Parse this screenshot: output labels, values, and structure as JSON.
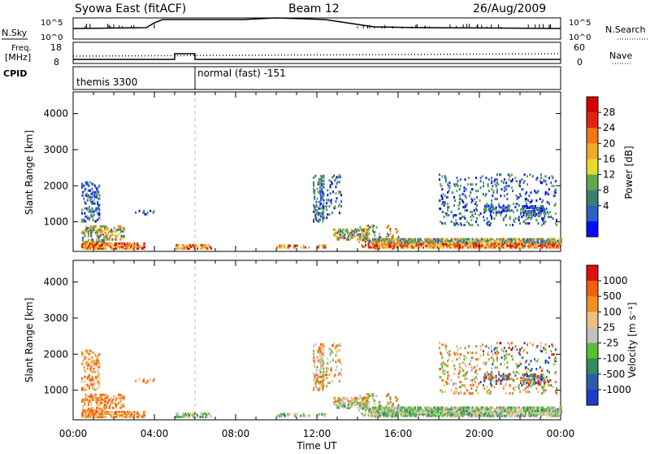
{
  "header": {
    "title": "Syowa East (fitACF)",
    "beam": "Beam 12",
    "date": "26/Aug/2009"
  },
  "strips": {
    "nsky": {
      "label": "N.Sky",
      "tick_top": "10^5",
      "tick_bottom": "10^0"
    },
    "nsearch": {
      "label": "N.Search",
      "tick_top": "10^5",
      "tick_bottom": "10^0"
    },
    "freq": {
      "label_line1": "Freq.",
      "label_line2": "[MHz]",
      "tick_top": "18",
      "tick_bottom": "8"
    },
    "nave": {
      "label": "Nave",
      "tick_top": "60",
      "tick_bottom": "0"
    },
    "cpid": {
      "label": "CPID",
      "modes": [
        "themis 3300",
        "normal (fast) -151"
      ]
    }
  },
  "chart_data": [
    {
      "type": "heatmap",
      "title": "",
      "xlabel": "Time UT",
      "ylabel": "Slant Range [km]",
      "xlim_hours": [
        0,
        24
      ],
      "ylim_km": [
        180,
        4600
      ],
      "x_ticks": [
        "00:00",
        "04:00",
        "08:00",
        "12:00",
        "16:00",
        "20:00",
        "00:00"
      ],
      "y_ticks": [
        1000,
        2000,
        3000,
        4000
      ],
      "colorbar": {
        "label": "Power [dB]",
        "ticks": [
          4,
          8,
          12,
          16,
          20,
          24,
          28
        ],
        "colors": [
          "#0a0aff",
          "#2a5ec8",
          "#3c7f6e",
          "#5fa84a",
          "#e6dc2a",
          "#f0a82a",
          "#f07818",
          "#e02414",
          "#d80000"
        ]
      },
      "grid": false
    },
    {
      "type": "heatmap",
      "title": "",
      "xlabel": "Time UT",
      "ylabel": "Slant Range [km]",
      "xlim_hours": [
        0,
        24
      ],
      "ylim_km": [
        180,
        4600
      ],
      "x_ticks": [
        "00:00",
        "04:00",
        "08:00",
        "12:00",
        "16:00",
        "20:00",
        "00:00"
      ],
      "y_ticks": [
        1000,
        2000,
        3000,
        4000
      ],
      "colorbar": {
        "label": "Velocity [m s⁻¹]",
        "ticks": [
          "1000",
          "500",
          "100",
          "25",
          "-25",
          "-100",
          "-500",
          "-1000"
        ],
        "colors": [
          "#1e3cc8",
          "#2860a8",
          "#2e8c60",
          "#58c034",
          "#c0c0c0",
          "#f0c080",
          "#f09020",
          "#f06010",
          "#e01010"
        ]
      },
      "grid": false
    }
  ]
}
